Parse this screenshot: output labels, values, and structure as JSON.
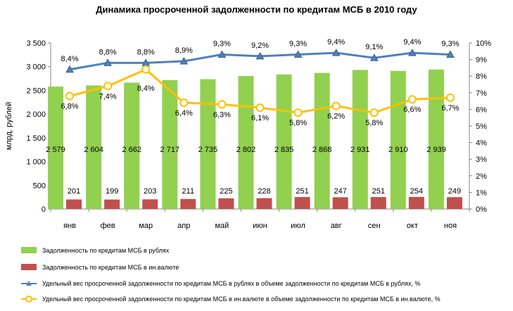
{
  "chart_data": {
    "type": "bar",
    "title": "Динамика просроченной задолженности по кредитам МСБ в 2010 году",
    "ylabel": "млрд. рублей",
    "categories": [
      "янв",
      "фев",
      "мар",
      "апр",
      "май",
      "июн",
      "июл",
      "авг",
      "сен",
      "окт",
      "ноя"
    ],
    "ylim": [
      0,
      3500
    ],
    "y_ticks": [
      "0",
      "500",
      "1 000",
      "1 500",
      "2 000",
      "2 500",
      "3 000",
      "3 500"
    ],
    "y2lim": [
      0,
      10
    ],
    "y2_ticks": [
      "0%",
      "1%",
      "2%",
      "3%",
      "4%",
      "5%",
      "6%",
      "7%",
      "8%",
      "9%",
      "10%"
    ],
    "series": [
      {
        "name": "Задолженность по кредитам МСБ в рублях",
        "type": "bar",
        "axis": "left",
        "color": "#92d050",
        "values": [
          2579,
          2604,
          2662,
          2717,
          2735,
          2802,
          2835,
          2868,
          2931,
          2910,
          2939
        ],
        "labels": [
          "2 579",
          "2 604",
          "2 662",
          "2 717",
          "2 735",
          "2 802",
          "2 835",
          "2 868",
          "2 931",
          "2 910",
          "2 939"
        ]
      },
      {
        "name": "Задолженность по кредитам МСБ в ин.валюте",
        "type": "bar",
        "axis": "left",
        "color": "#c0504d",
        "values": [
          201,
          199,
          203,
          211,
          225,
          228,
          251,
          247,
          251,
          254,
          249
        ],
        "labels": [
          "201",
          "199",
          "203",
          "211",
          "225",
          "228",
          "251",
          "247",
          "251",
          "254",
          "249"
        ]
      },
      {
        "name": "Удельный вес просроченной задолженности по кредитам МСБ в рублях в объеме задолженности по кредитам МСБ в рублях, %",
        "type": "line",
        "axis": "right",
        "color": "#4f81bd",
        "marker": "triangle",
        "values": [
          8.4,
          8.8,
          8.8,
          8.9,
          9.3,
          9.2,
          9.3,
          9.4,
          9.1,
          9.4,
          9.3
        ],
        "labels": [
          "8,4%",
          "8,8%",
          "8,8%",
          "8,9%",
          "9,3%",
          "9,2%",
          "9,3%",
          "9,4%",
          "9,1%",
          "9,4%",
          "9,3%"
        ]
      },
      {
        "name": "Удельный вес просроченной задолженности по кредитам МСБ в ин.валюте в объеме задолженности по кредитам МСБ в ин.валюте, %",
        "type": "line",
        "axis": "right",
        "color": "#ffc000",
        "marker": "circle",
        "values": [
          6.8,
          7.4,
          8.4,
          6.4,
          6.3,
          6.1,
          5.8,
          6.2,
          5.8,
          6.6,
          6.7
        ],
        "labels": [
          "6,8%",
          "7,4%",
          "8,4%",
          "6,4%",
          "6,3%",
          "6,1%",
          "5,8%",
          "6,2%",
          "5,8%",
          "6,6%",
          "6,7%"
        ]
      }
    ],
    "grid": false,
    "legend_position": "bottom"
  }
}
